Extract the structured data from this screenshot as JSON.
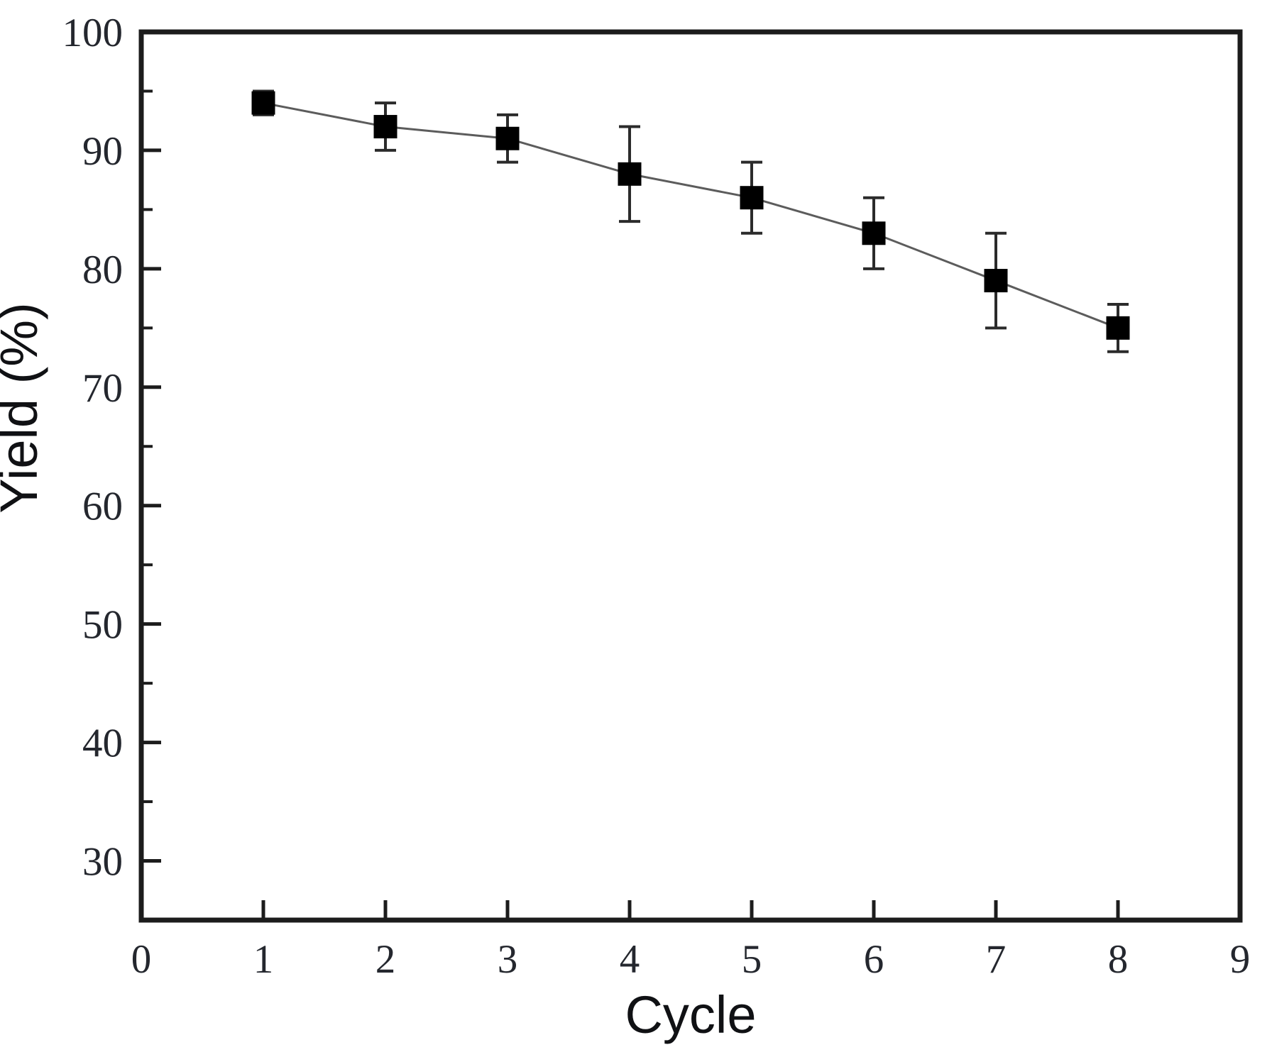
{
  "chart_data": {
    "type": "line",
    "title": "",
    "xlabel": "Cycle",
    "ylabel": "Yield (%)",
    "x": [
      1,
      2,
      3,
      4,
      5,
      6,
      7,
      8
    ],
    "series": [
      {
        "name": "Yield",
        "values": [
          94,
          92,
          91,
          88,
          86,
          83,
          79,
          75
        ],
        "error_bars": [
          1,
          2,
          2,
          4,
          3,
          3,
          4,
          2
        ],
        "marker": "filled-square",
        "marker_color": "#000000",
        "line_color": "#5c5c5c",
        "error_bar_color": "#2b2b2b"
      }
    ],
    "xlim": [
      0,
      9
    ],
    "ylim": [
      25,
      100
    ],
    "x_ticks": [
      0,
      1,
      2,
      3,
      4,
      5,
      6,
      7,
      8,
      9
    ],
    "y_major_ticks": [
      30,
      40,
      50,
      60,
      70,
      80,
      90,
      100
    ],
    "y_minor_tick_step": 5,
    "grid": false,
    "legend": false,
    "frame": true,
    "frame_color": "#1c1c1c",
    "background": "#ffffff"
  }
}
